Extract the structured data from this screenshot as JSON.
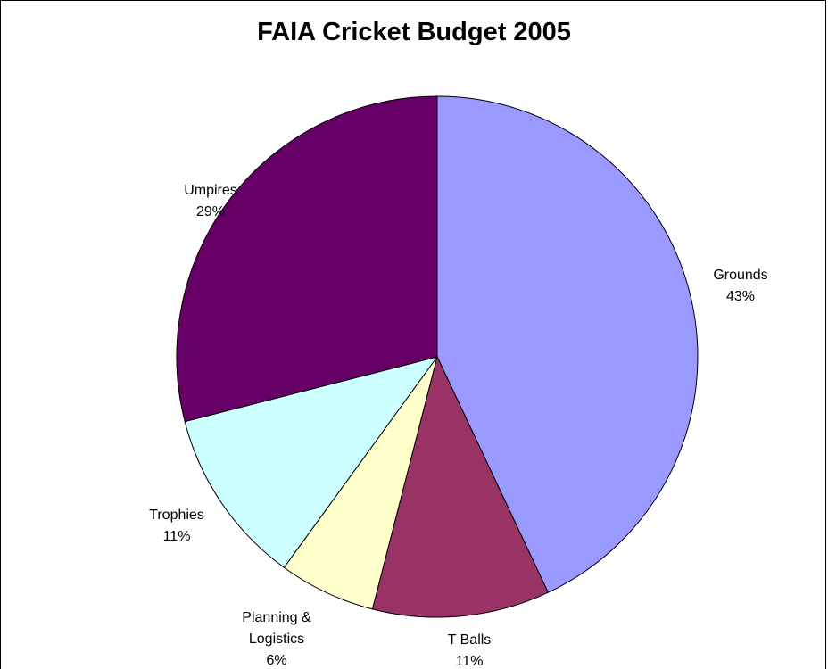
{
  "chart_data": {
    "type": "pie",
    "title": "FAIA Cricket Budget 2005",
    "slices": [
      {
        "label": "Grounds",
        "label_lines": [
          "Grounds"
        ],
        "percent_label": "43%",
        "value": 43,
        "color": "#9999ff"
      },
      {
        "label": "T Balls",
        "label_lines": [
          "T Balls"
        ],
        "percent_label": "11%",
        "value": 11,
        "color": "#993366"
      },
      {
        "label": "Planning & Logistics",
        "label_lines": [
          "Planning &",
          "Logistics"
        ],
        "percent_label": "6%",
        "value": 6,
        "color": "#ffffcc"
      },
      {
        "label": "Trophies",
        "label_lines": [
          "Trophies"
        ],
        "percent_label": "11%",
        "value": 11,
        "color": "#ccffff"
      },
      {
        "label": "Umpires",
        "label_lines": [
          "Umpires"
        ],
        "percent_label": "29%",
        "value": 29,
        "color": "#660066"
      }
    ],
    "start_angle": "12 o'clock",
    "direction": "clockwise",
    "legend": "none"
  }
}
